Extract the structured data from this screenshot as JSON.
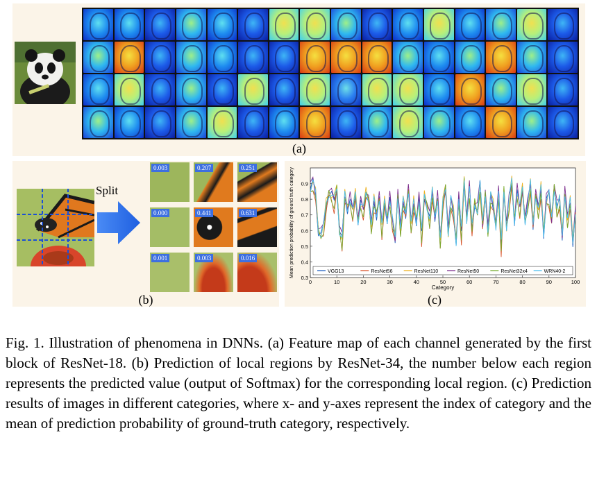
{
  "panel_a": {
    "label": "(a)"
  },
  "panel_b": {
    "label": "(b)",
    "split_label": "Split",
    "region_values": [
      "0.003",
      "0.207",
      "0.251",
      "0.000",
      "0.441",
      "0.631",
      "0.001",
      "0.003",
      "0.016"
    ]
  },
  "panel_c": {
    "label": "(c)"
  },
  "caption": {
    "text": "Fig. 1.   Illustration of phenomena in DNNs. (a) Feature map of each channel generated by the first block of ResNet-18. (b) Prediction of local regions by ResNet-34, the number below each region represents the predicted value (output of Softmax) for the corresponding local region. (c) Prediction results of images in different categories, where x- and y-axes represent the index of category and the mean of prediction probability of ground-truth category, respectively."
  },
  "chart_data": {
    "type": "line",
    "xlabel": "Category",
    "ylabel": "Mean prediction probability of ground truth category",
    "xlim": [
      0,
      100
    ],
    "ylim": [
      0.3,
      1.0
    ],
    "xticks": [
      0,
      10,
      20,
      30,
      40,
      50,
      60,
      70,
      80,
      90,
      100
    ],
    "yticks": [
      0.3,
      0.4,
      0.5,
      0.6,
      0.7,
      0.8,
      0.9
    ],
    "legend_position": "bottom",
    "series": [
      {
        "name": "VGG13",
        "color": "#1f5fbf"
      },
      {
        "name": "ResNet56",
        "color": "#d9532a"
      },
      {
        "name": "ResNet110",
        "color": "#edb120"
      },
      {
        "name": "ResNet50",
        "color": "#7e2f8e"
      },
      {
        "name": "ResNet32x4",
        "color": "#77ac30"
      },
      {
        "name": "WRN40-2",
        "color": "#4dbeee"
      }
    ],
    "x": [
      0,
      1,
      2,
      3,
      4,
      5,
      6,
      7,
      8,
      9,
      10,
      11,
      12,
      13,
      14,
      15,
      16,
      17,
      18,
      19,
      20,
      21,
      22,
      23,
      24,
      25,
      26,
      27,
      28,
      29,
      30,
      31,
      32,
      33,
      34,
      35,
      36,
      37,
      38,
      39,
      40,
      41,
      42,
      43,
      44,
      45,
      46,
      47,
      48,
      49,
      50,
      51,
      52,
      53,
      54,
      55,
      56,
      57,
      58,
      59,
      60,
      61,
      62,
      63,
      64,
      65,
      66,
      67,
      68,
      69,
      70,
      71,
      72,
      73,
      74,
      75,
      76,
      77,
      78,
      79,
      80,
      81,
      82,
      83,
      84,
      85,
      86,
      87,
      88,
      89,
      90,
      91,
      92,
      93,
      94,
      95,
      96,
      97,
      98,
      99,
      100
    ],
    "base": [
      0.86,
      0.9,
      0.83,
      0.6,
      0.57,
      0.62,
      0.76,
      0.84,
      0.82,
      0.78,
      0.87,
      0.6,
      0.53,
      0.82,
      0.74,
      0.79,
      0.71,
      0.83,
      0.66,
      0.77,
      0.72,
      0.84,
      0.8,
      0.62,
      0.78,
      0.7,
      0.81,
      0.61,
      0.78,
      0.67,
      0.79,
      0.65,
      0.55,
      0.83,
      0.6,
      0.78,
      0.71,
      0.86,
      0.63,
      0.77,
      0.66,
      0.8,
      0.57,
      0.82,
      0.76,
      0.66,
      0.84,
      0.69,
      0.81,
      0.53,
      0.77,
      0.88,
      0.58,
      0.79,
      0.71,
      0.53,
      0.8,
      0.58,
      0.92,
      0.67,
      0.86,
      0.61,
      0.78,
      0.72,
      0.89,
      0.64,
      0.84,
      0.59,
      0.81,
      0.76,
      0.63,
      0.84,
      0.5,
      0.86,
      0.62,
      0.79,
      0.91,
      0.66,
      0.84,
      0.73,
      0.87,
      0.66,
      0.76,
      0.89,
      0.64,
      0.83,
      0.72,
      0.86,
      0.58,
      0.79,
      0.82,
      0.67,
      0.88,
      0.73,
      0.79,
      0.57,
      0.84,
      0.66,
      0.78,
      0.53,
      0.72
    ],
    "offsets": [
      0.0,
      -0.04,
      0.02,
      0.03,
      -0.02,
      0.01
    ]
  }
}
